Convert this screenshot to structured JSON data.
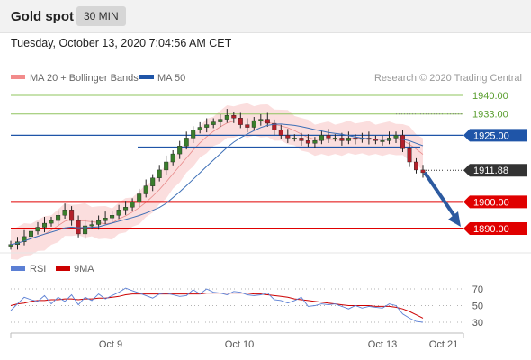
{
  "header": {
    "title": "Gold spot",
    "timeframe": "30 MIN"
  },
  "datetime": "Tuesday, October 13, 2020 7:04:56 AM CET",
  "colors": {
    "candle_up": "#3a7d2c",
    "candle_down": "#b3202a",
    "bollinger_fill": "#f9d3d3",
    "ma20": "#e06666",
    "ma50": "#3d6fb6",
    "resistance": "#8fc45e",
    "pivot": "#1f55a8",
    "support": "#e00000",
    "last_price_tag": "#333333",
    "rsi": "#5b7fd4",
    "rsi_ma": "#cc0000"
  },
  "chart_data": [
    {
      "type": "candlestick",
      "legend": [
        {
          "label": "MA 20 + Bollinger Bands",
          "color": "#f28b8b"
        },
        {
          "label": "MA 50",
          "color": "#1f55a8"
        }
      ],
      "legend_placement": "top-left",
      "source": "Research © 2020 Trading Central",
      "y_range": [
        1882,
        1946
      ],
      "x_ticks": [
        "Oct 9",
        "Oct 10",
        "Oct 13",
        "Oct 21"
      ],
      "price_levels": [
        {
          "value": 1940.0,
          "label": "1940.00",
          "kind": "resistance"
        },
        {
          "value": 1933.0,
          "label": "1933.00",
          "kind": "resistance"
        },
        {
          "value": 1925.0,
          "label": "1925.00",
          "kind": "pivot"
        },
        {
          "value": 1911.88,
          "label": "1911.88",
          "kind": "last"
        },
        {
          "value": 1900.0,
          "label": "1900.00",
          "kind": "support"
        },
        {
          "value": 1890.0,
          "label": "1890.00",
          "kind": "support"
        }
      ],
      "pivot_segment": {
        "value": 1920.5
      },
      "forecast_arrow": {
        "from": 1911.0,
        "to": 1890.0,
        "direction": "down"
      },
      "close_path": [
        1884,
        1885,
        1887,
        1889,
        1890.5,
        1892,
        1893,
        1895,
        1897,
        1893,
        1888,
        1891,
        1891.5,
        1893,
        1894,
        1895,
        1897,
        1898,
        1900,
        1903,
        1906,
        1909,
        1912,
        1915,
        1918,
        1921,
        1924,
        1927,
        1928,
        1929,
        1930,
        1931,
        1932.5,
        1931.5,
        1929,
        1928,
        1930.5,
        1931,
        1929.5,
        1927,
        1925,
        1924,
        1924,
        1923,
        1922,
        1923,
        1925,
        1924,
        1924,
        1923,
        1924,
        1923.5,
        1924,
        1923.5,
        1923,
        1923,
        1924,
        1925,
        1920,
        1915,
        1912,
        1911
      ]
    },
    {
      "type": "line",
      "title": "RSI",
      "legend": [
        {
          "label": "RSI",
          "color": "#5b7fd4"
        },
        {
          "label": "9MA",
          "color": "#cc0000"
        }
      ],
      "y_range": [
        25,
        80
      ],
      "y_ticks": [
        70,
        50,
        30
      ],
      "rsi_path": [
        44,
        52,
        60,
        57,
        55,
        62,
        52,
        60,
        55,
        63,
        51,
        60,
        56,
        64,
        58,
        62,
        66,
        71,
        68,
        65,
        62,
        59,
        64,
        65,
        63,
        61,
        62,
        69,
        64,
        70,
        66,
        65,
        63,
        67,
        66,
        63,
        62,
        63,
        65,
        57,
        56,
        53,
        56,
        60,
        49,
        50,
        52,
        51,
        52,
        49,
        46,
        50,
        47,
        49,
        48,
        47,
        52,
        50,
        40,
        35,
        31,
        30
      ],
      "ma_path": [
        50,
        52,
        53,
        55,
        56,
        56,
        57,
        57,
        58,
        58,
        57,
        58,
        58,
        59,
        59,
        60,
        61,
        63,
        64,
        64,
        64,
        64,
        64,
        64,
        64,
        64,
        64,
        64,
        64,
        65,
        65,
        65,
        65,
        65,
        65,
        65,
        64,
        64,
        63,
        62,
        61,
        60,
        58,
        57,
        56,
        55,
        54,
        53,
        52,
        51,
        50,
        50,
        50,
        50,
        49,
        49,
        49,
        48,
        46,
        43,
        39,
        35
      ]
    }
  ]
}
